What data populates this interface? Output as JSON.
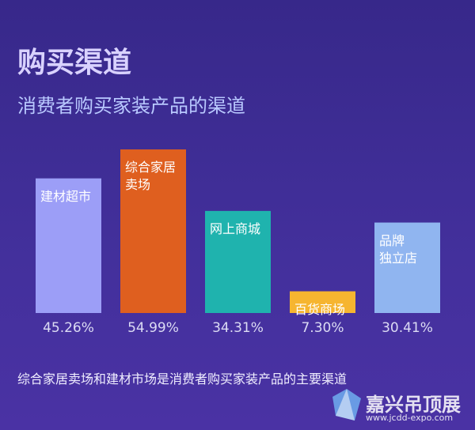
{
  "chart_data": {
    "type": "bar",
    "title": "购买渠道",
    "subtitle": "消费者购买家装产品的渠道",
    "categories": [
      "建材超市",
      "综合家居\n卖场",
      "网上商城",
      "百货商场",
      "品牌\n独立店"
    ],
    "values": [
      45.26,
      54.99,
      34.31,
      7.3,
      30.41
    ],
    "value_labels": [
      "45.26%",
      "54.99%",
      "34.31%",
      "7.30%",
      "30.41%"
    ],
    "colors": [
      "#9c9ef7",
      "#df5f1f",
      "#1fb3ae",
      "#f6b530",
      "#90b5f0"
    ],
    "ylim": [
      0,
      55
    ],
    "note": "综合家居卖场和建材市场是消费者购买家装产品的主要渠道"
  },
  "watermark": {
    "name": "嘉兴吊顶展",
    "url": "www.jcdd-expo.com"
  }
}
